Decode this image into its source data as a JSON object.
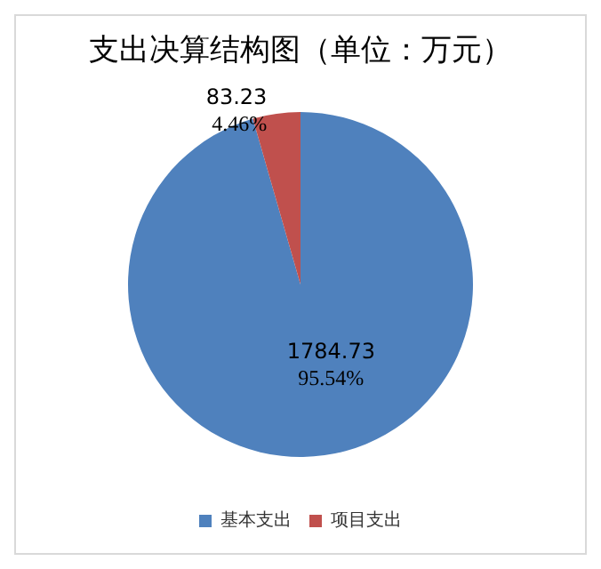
{
  "chart_data": {
    "type": "pie",
    "title": "支出决算结构图（单位：万元）",
    "categories": [
      "基本支出",
      "项目支出"
    ],
    "values": [
      1784.73,
      83.23
    ],
    "colors": [
      "#4f81bd",
      "#c0504d"
    ],
    "value_labels": [
      "1784.73\n95.54%",
      "83.23\n4.46%"
    ],
    "legend": "bottom"
  }
}
